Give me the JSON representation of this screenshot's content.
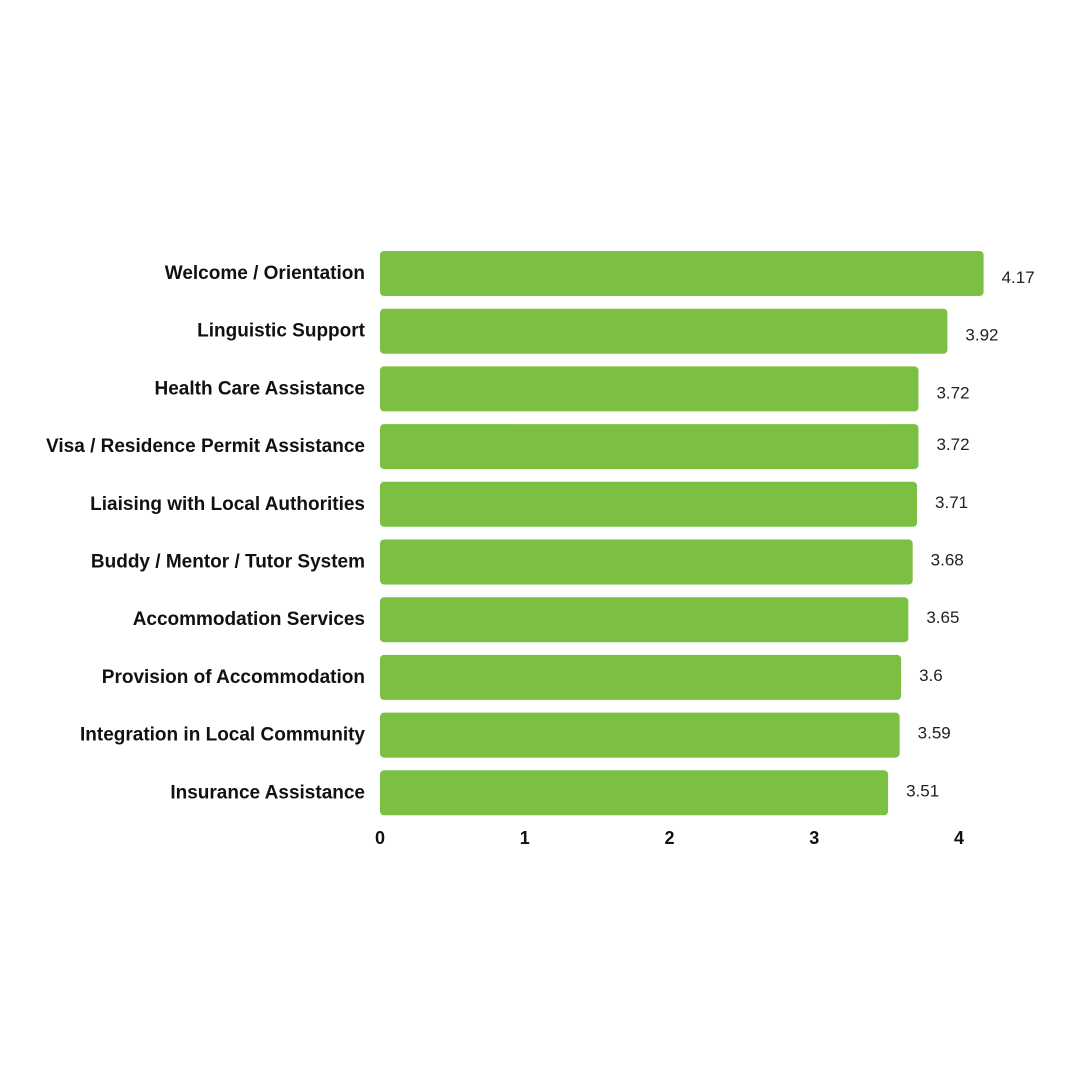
{
  "chart_data": {
    "type": "bar",
    "orientation": "horizontal",
    "categories": [
      "Welcome / Orientation",
      "Linguistic Support",
      "Health Care Assistance",
      "Visa / Residence Permit Assistance",
      "Liaising with Local Authorities",
      "Buddy / Mentor / Tutor System",
      "Accommodation Services",
      "Provision of Accommodation",
      "Integration in Local Community",
      "Insurance Assistance"
    ],
    "values": [
      4.17,
      3.92,
      3.72,
      3.72,
      3.71,
      3.68,
      3.65,
      3.6,
      3.59,
      3.51
    ],
    "value_labels": [
      "4.17",
      "3.92",
      "3.72",
      "3.72",
      "3.71",
      "3.68",
      "3.65",
      "3.6",
      "3.59",
      "3.51"
    ],
    "title": "",
    "xlabel": "",
    "ylabel": "",
    "xlim": [
      0,
      4
    ],
    "x_ticks": [
      "0",
      "1",
      "2",
      "3",
      "4"
    ],
    "grid": false,
    "legend": false,
    "bar_color": "#7bc043"
  }
}
